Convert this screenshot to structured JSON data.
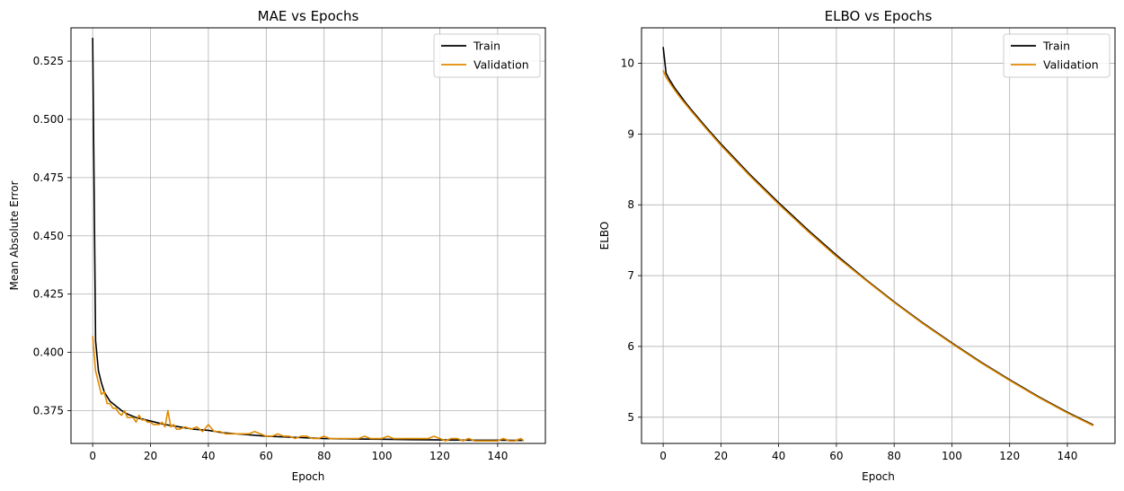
{
  "colors": {
    "train": "#000000",
    "validation": "#e08a00",
    "grid": "#b0b0b0",
    "frame": "#000000"
  },
  "chart_data": [
    {
      "type": "line",
      "title": "MAE vs Epochs",
      "xlabel": "Epoch",
      "ylabel": "Mean Absolute Error",
      "xlim": [
        -7.5,
        156.5
      ],
      "ylim": [
        0.3609,
        0.5393
      ],
      "xticks": [
        0,
        20,
        40,
        60,
        80,
        100,
        120,
        140
      ],
      "yticks": [
        0.375,
        0.4,
        0.425,
        0.45,
        0.475,
        0.5,
        0.525
      ],
      "ytick_labels": [
        "0.375",
        "0.400",
        "0.425",
        "0.450",
        "0.475",
        "0.500",
        "0.525"
      ],
      "grid": true,
      "legend_position": "top-right",
      "series": [
        {
          "name": "Train",
          "color": "#000000",
          "x": [
            0,
            1,
            2,
            3,
            4,
            6,
            8,
            10,
            12,
            15,
            20,
            25,
            30,
            35,
            40,
            45,
            50,
            60,
            70,
            80,
            90,
            100,
            110,
            120,
            130,
            140,
            149
          ],
          "y": [
            0.535,
            0.405,
            0.392,
            0.387,
            0.383,
            0.379,
            0.377,
            0.375,
            0.3735,
            0.372,
            0.3705,
            0.369,
            0.368,
            0.367,
            0.3665,
            0.3655,
            0.365,
            0.364,
            0.3635,
            0.363,
            0.3628,
            0.3627,
            0.3625,
            0.3624,
            0.3623,
            0.3623,
            0.3622
          ]
        },
        {
          "name": "Validation",
          "color": "#e08a00",
          "x": [
            0,
            1,
            2,
            3,
            4,
            5,
            6,
            7,
            8,
            9,
            10,
            11,
            12,
            13,
            14,
            15,
            16,
            17,
            18,
            19,
            20,
            21,
            22,
            23,
            24,
            25,
            26,
            27,
            28,
            29,
            30,
            32,
            34,
            36,
            38,
            40,
            42,
            44,
            46,
            48,
            50,
            52,
            54,
            56,
            58,
            60,
            62,
            64,
            66,
            68,
            70,
            72,
            74,
            76,
            78,
            80,
            82,
            84,
            86,
            88,
            90,
            92,
            94,
            96,
            98,
            100,
            102,
            104,
            106,
            108,
            110,
            112,
            114,
            116,
            118,
            120,
            122,
            124,
            126,
            128,
            130,
            132,
            134,
            136,
            138,
            140,
            142,
            144,
            146,
            148,
            149
          ],
          "y": [
            0.407,
            0.392,
            0.387,
            0.382,
            0.383,
            0.378,
            0.378,
            0.376,
            0.376,
            0.374,
            0.373,
            0.375,
            0.372,
            0.372,
            0.372,
            0.37,
            0.373,
            0.371,
            0.371,
            0.37,
            0.37,
            0.369,
            0.369,
            0.369,
            0.37,
            0.368,
            0.375,
            0.368,
            0.369,
            0.367,
            0.367,
            0.368,
            0.367,
            0.368,
            0.366,
            0.369,
            0.366,
            0.366,
            0.365,
            0.365,
            0.365,
            0.365,
            0.365,
            0.366,
            0.365,
            0.364,
            0.364,
            0.365,
            0.364,
            0.364,
            0.363,
            0.364,
            0.364,
            0.363,
            0.363,
            0.364,
            0.363,
            0.363,
            0.363,
            0.363,
            0.363,
            0.363,
            0.364,
            0.363,
            0.363,
            0.363,
            0.364,
            0.363,
            0.363,
            0.363,
            0.363,
            0.363,
            0.363,
            0.363,
            0.364,
            0.363,
            0.362,
            0.363,
            0.363,
            0.362,
            0.363,
            0.362,
            0.362,
            0.362,
            0.362,
            0.362,
            0.363,
            0.362,
            0.362,
            0.363,
            0.362
          ]
        }
      ]
    },
    {
      "type": "line",
      "title": "ELBO vs Epochs",
      "xlabel": "Epoch",
      "ylabel": "ELBO",
      "xlim": [
        -7.5,
        156.5
      ],
      "ylim": [
        4.63,
        10.5
      ],
      "xticks": [
        0,
        20,
        40,
        60,
        80,
        100,
        120,
        140
      ],
      "yticks": [
        5,
        6,
        7,
        8,
        9,
        10
      ],
      "ytick_labels": [
        "5",
        "6",
        "7",
        "8",
        "9",
        "10"
      ],
      "grid": true,
      "legend_position": "top-right",
      "series": [
        {
          "name": "Train",
          "color": "#000000",
          "x": [
            0,
            1,
            2,
            4,
            6,
            8,
            10,
            15,
            20,
            30,
            40,
            50,
            60,
            70,
            80,
            90,
            100,
            110,
            120,
            130,
            140,
            149
          ],
          "y": [
            10.23,
            9.86,
            9.78,
            9.65,
            9.54,
            9.43,
            9.33,
            9.09,
            8.86,
            8.43,
            8.03,
            7.65,
            7.29,
            6.95,
            6.63,
            6.33,
            6.05,
            5.78,
            5.53,
            5.29,
            5.07,
            4.89
          ]
        },
        {
          "name": "Validation",
          "color": "#e08a00",
          "x": [
            0,
            1,
            2,
            4,
            6,
            8,
            10,
            15,
            20,
            30,
            40,
            50,
            60,
            70,
            80,
            90,
            100,
            110,
            120,
            130,
            140,
            149
          ],
          "y": [
            9.9,
            9.8,
            9.74,
            9.62,
            9.51,
            9.41,
            9.31,
            9.07,
            8.84,
            8.41,
            8.01,
            7.63,
            7.27,
            6.94,
            6.62,
            6.32,
            6.04,
            5.77,
            5.52,
            5.28,
            5.06,
            4.88
          ]
        }
      ]
    }
  ]
}
